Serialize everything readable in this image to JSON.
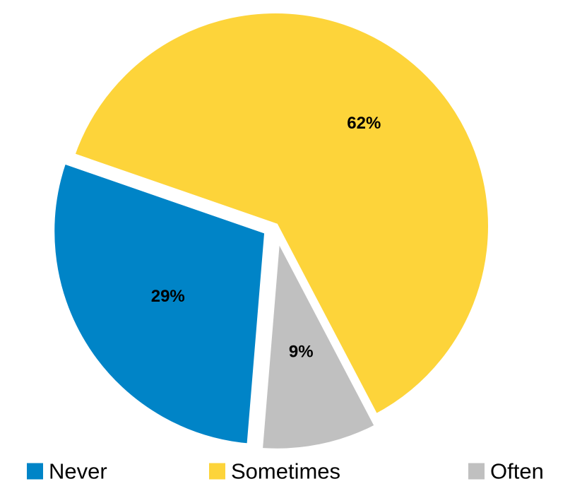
{
  "chart_data": {
    "type": "pie",
    "title": "",
    "slices": [
      {
        "label": "Never",
        "value": 29,
        "display": "29%",
        "color": "#0084C7",
        "exploded": true
      },
      {
        "label": "Sometimes",
        "value": 62,
        "display": "62%",
        "color": "#FDD43A",
        "exploded": false
      },
      {
        "label": "Often",
        "value": 9,
        "display": "9%",
        "color": "#C0C0C0",
        "exploded": true
      }
    ],
    "legend": {
      "position": "bottom",
      "items": [
        "Never",
        "Sometimes",
        "Often"
      ]
    }
  }
}
